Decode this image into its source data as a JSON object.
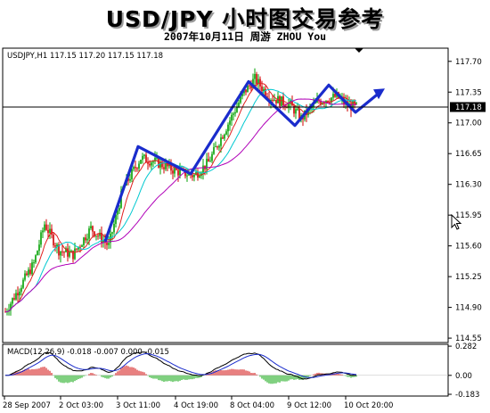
{
  "header": {
    "title": "USD/JPY 小时图交易参考",
    "subtitle": "2007年10月11日   周游 ZHOU You"
  },
  "main_panel": {
    "info": "USDJPY,H1  117.15 117.20 117.15 117.18",
    "current_price": "117.18",
    "y_ticks": [
      "117.70",
      "117.35",
      "117.00",
      "116.65",
      "116.30",
      "115.95",
      "115.60",
      "115.25",
      "114.90",
      "114.55"
    ],
    "y_range": [
      114.5,
      117.85
    ]
  },
  "macd_panel": {
    "info": "MACD(12,26,9) -0.018 -0.007 0.000 -0.015",
    "y_ticks": [
      "0.282",
      "0.00",
      "-0.183"
    ]
  },
  "x_ticks": [
    "28 Sep 2007",
    "2 Oct 03:00",
    "3 Oct 11:00",
    "4 Oct 19:00",
    "8 Oct 04:00",
    "9 Oct 12:00",
    "10 Oct 20:00"
  ],
  "colors": {
    "bull_candle": "#00a000",
    "bear_candle": "#d00000",
    "wave_line": "#1a2ccc",
    "ma_cyan": "#00c8d0",
    "ma_magenta": "#b000b8",
    "ma_red": "#e02020",
    "macd_line": "#000000",
    "signal_line": "#1a2ccc"
  },
  "chart_data": {
    "type": "candlestick",
    "wave_annotation_prices": [
      115.65,
      116.73,
      116.42,
      117.47,
      116.97,
      117.43,
      117.12,
      117.36
    ],
    "last_close": 117.18
  }
}
